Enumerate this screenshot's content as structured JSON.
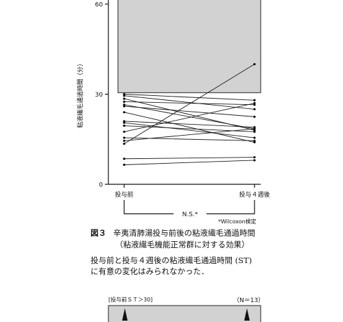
{
  "chart_data": {
    "type": "line",
    "title": "",
    "ylabel": "粘液繊毛通過時間（分）",
    "xlabel": "",
    "categories": [
      "投与前",
      "投与４週後"
    ],
    "ylim": [
      0,
      60
    ],
    "yticks": [
      0,
      30,
      60
    ],
    "shaded_region": {
      "from": 30.5,
      "to": 60,
      "color": "#d0d0d0"
    },
    "series": [
      {
        "values": [
          30.0,
          28.0
        ]
      },
      {
        "values": [
          29.5,
          25.0
        ]
      },
      {
        "values": [
          28.5,
          18.0
        ]
      },
      {
        "values": [
          27.5,
          26.5
        ]
      },
      {
        "values": [
          26.5,
          18.5
        ]
      },
      {
        "values": [
          26.0,
          22.5
        ]
      },
      {
        "values": [
          24.0,
          14.0
        ]
      },
      {
        "values": [
          21.0,
          19.0
        ]
      },
      {
        "values": [
          20.5,
          15.5
        ]
      },
      {
        "values": [
          19.5,
          17.5
        ]
      },
      {
        "values": [
          17.5,
          27.0
        ]
      },
      {
        "values": [
          15.5,
          14.5
        ]
      },
      {
        "values": [
          14.5,
          18.5
        ]
      },
      {
        "values": [
          13.5,
          40.0
        ]
      },
      {
        "values": [
          8.5,
          9.0
        ]
      },
      {
        "values": [
          6.5,
          8.0
        ]
      }
    ],
    "annotation_ns": "N.S.*",
    "significance_method": "*Wilcoxon検定"
  },
  "caption": {
    "number": "図３",
    "title": "辛夷清肺湯投与前後の粘液繊毛通過時間",
    "subtitle": "（粘液繊毛機能正常群に対する効果）",
    "note_line1": "投与前と投与４週後の粘液繊毛通過時間 (ST)",
    "note_line2": "に有意の変化はみられなかった．"
  },
  "next_figure": {
    "label": "[投与前ＳＴ＞30]",
    "n_label": "（N＝13）"
  }
}
